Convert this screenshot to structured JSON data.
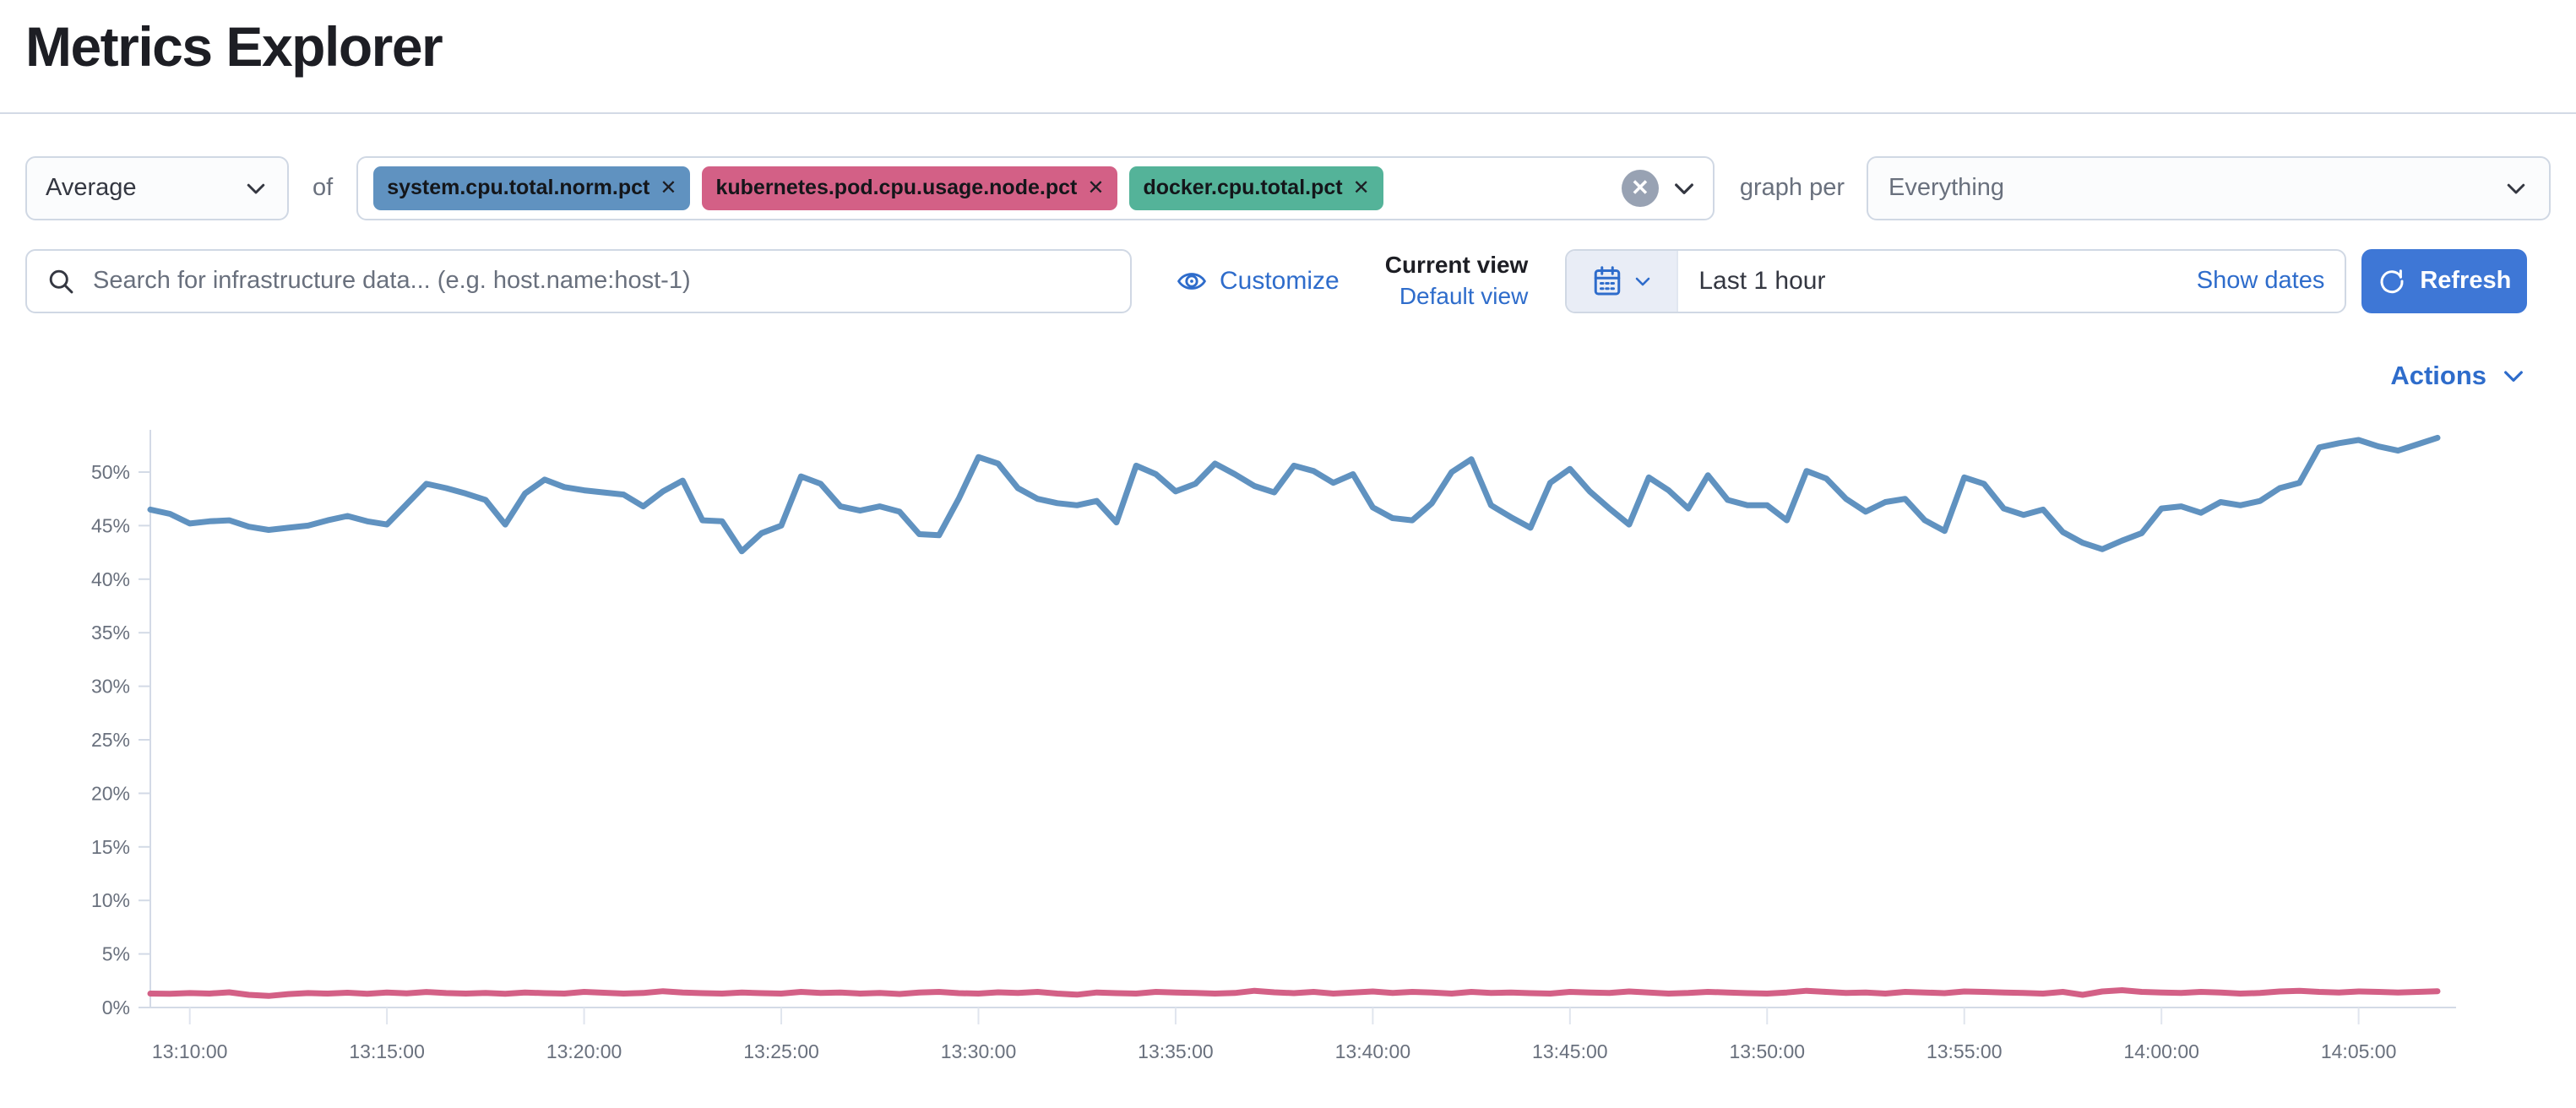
{
  "page": {
    "title": "Metrics Explorer"
  },
  "toolbar": {
    "aggregation": {
      "value": "Average"
    },
    "of_label": "of",
    "metrics": [
      {
        "label": "system.cpu.total.norm.pct",
        "color": "#6092C0"
      },
      {
        "label": "kubernetes.pod.cpu.usage.node.pct",
        "color": "#D36086"
      },
      {
        "label": "docker.cpu.total.pct",
        "color": "#54B399"
      }
    ],
    "clear_icon": "circle-cross",
    "graph_per_label": "graph per",
    "group_by": {
      "value": "Everything"
    }
  },
  "searchbar": {
    "placeholder": "Search for infrastructure data... (e.g. host.name:host-1)"
  },
  "view_controls": {
    "customize_label": "Customize",
    "current_view_label": "Current view",
    "view_name": "Default view"
  },
  "datepicker": {
    "value": "Last 1 hour",
    "show_dates_label": "Show dates",
    "refresh_label": "Refresh"
  },
  "actions": {
    "label": "Actions"
  },
  "colors": {
    "primary_button": "#3e77d6",
    "link": "#2e6ccb",
    "axis": "#d3dae6",
    "tick_text": "#69707d"
  },
  "chart_data": {
    "type": "line",
    "title": "",
    "xlabel": "",
    "ylabel": "",
    "grid": false,
    "legend": "none",
    "x_axis": {
      "labels": [
        "13:10:00",
        "13:15:00",
        "13:20:00",
        "13:25:00",
        "13:30:00",
        "13:35:00",
        "13:40:00",
        "13:45:00",
        "13:50:00",
        "13:55:00",
        "14:00:00",
        "14:05:00"
      ],
      "first_tick_index": 2,
      "tick_step_points": 10,
      "start_time": "13:09:00",
      "point_interval_seconds": 30
    },
    "y_axis": {
      "labels": [
        "0%",
        "5%",
        "10%",
        "15%",
        "20%",
        "25%",
        "30%",
        "35%",
        "40%",
        "45%",
        "50%"
      ],
      "min": 0,
      "max": 55,
      "tick_step": 5,
      "unit": "%"
    },
    "series": [
      {
        "name": "system.cpu.total.norm.pct",
        "color": "#6092C0",
        "values": [
          46.5,
          46.1,
          45.2,
          45.4,
          45.5,
          44.9,
          44.6,
          44.8,
          45.0,
          45.5,
          45.9,
          45.4,
          45.1,
          47.0,
          48.9,
          48.5,
          48.0,
          47.4,
          45.1,
          48.0,
          49.3,
          48.6,
          48.3,
          48.1,
          47.9,
          46.8,
          48.2,
          49.2,
          45.5,
          45.4,
          42.6,
          44.3,
          45.0,
          49.6,
          48.9,
          46.8,
          46.4,
          46.8,
          46.3,
          44.2,
          44.1,
          47.5,
          51.4,
          50.8,
          48.5,
          47.5,
          47.1,
          46.9,
          47.3,
          45.3,
          50.6,
          49.8,
          48.2,
          48.9,
          50.8,
          49.8,
          48.7,
          48.1,
          50.6,
          50.1,
          49.0,
          49.8,
          46.7,
          45.7,
          45.5,
          47.1,
          50.0,
          51.2,
          46.9,
          45.8,
          44.8,
          49.0,
          50.3,
          48.2,
          46.6,
          45.1,
          49.5,
          48.3,
          46.6,
          49.7,
          47.4,
          46.9,
          46.9,
          45.5,
          50.1,
          49.4,
          47.5,
          46.3,
          47.2,
          47.5,
          45.5,
          44.5,
          49.5,
          48.9,
          46.6,
          46.0,
          46.5,
          44.4,
          43.4,
          42.8,
          43.6,
          44.3,
          46.6,
          46.8,
          46.2,
          47.2,
          46.9,
          47.3,
          48.5,
          49.0,
          52.3,
          52.7,
          53.0,
          52.4,
          52.0,
          52.6,
          53.2
        ]
      },
      {
        "name": "kubernetes.pod.cpu.usage.node.pct",
        "color": "#D36086",
        "values": [
          1.3,
          1.28,
          1.35,
          1.3,
          1.42,
          1.18,
          1.08,
          1.25,
          1.35,
          1.3,
          1.38,
          1.28,
          1.4,
          1.32,
          1.45,
          1.35,
          1.3,
          1.36,
          1.28,
          1.4,
          1.34,
          1.3,
          1.46,
          1.38,
          1.3,
          1.36,
          1.52,
          1.4,
          1.34,
          1.3,
          1.4,
          1.34,
          1.3,
          1.46,
          1.36,
          1.4,
          1.3,
          1.36,
          1.26,
          1.4,
          1.46,
          1.34,
          1.3,
          1.42,
          1.36,
          1.46,
          1.3,
          1.2,
          1.4,
          1.34,
          1.3,
          1.46,
          1.4,
          1.36,
          1.3,
          1.36,
          1.56,
          1.42,
          1.34,
          1.46,
          1.3,
          1.4,
          1.5,
          1.36,
          1.46,
          1.4,
          1.3,
          1.46,
          1.36,
          1.4,
          1.34,
          1.3,
          1.46,
          1.4,
          1.36,
          1.5,
          1.4,
          1.3,
          1.36,
          1.46,
          1.4,
          1.34,
          1.3,
          1.4,
          1.56,
          1.46,
          1.36,
          1.4,
          1.3,
          1.46,
          1.4,
          1.34,
          1.5,
          1.46,
          1.4,
          1.36,
          1.3,
          1.46,
          1.18,
          1.5,
          1.62,
          1.46,
          1.4,
          1.36,
          1.46,
          1.4,
          1.3,
          1.36,
          1.5,
          1.56,
          1.46,
          1.4,
          1.5,
          1.46,
          1.4,
          1.46,
          1.52
        ]
      }
    ]
  }
}
